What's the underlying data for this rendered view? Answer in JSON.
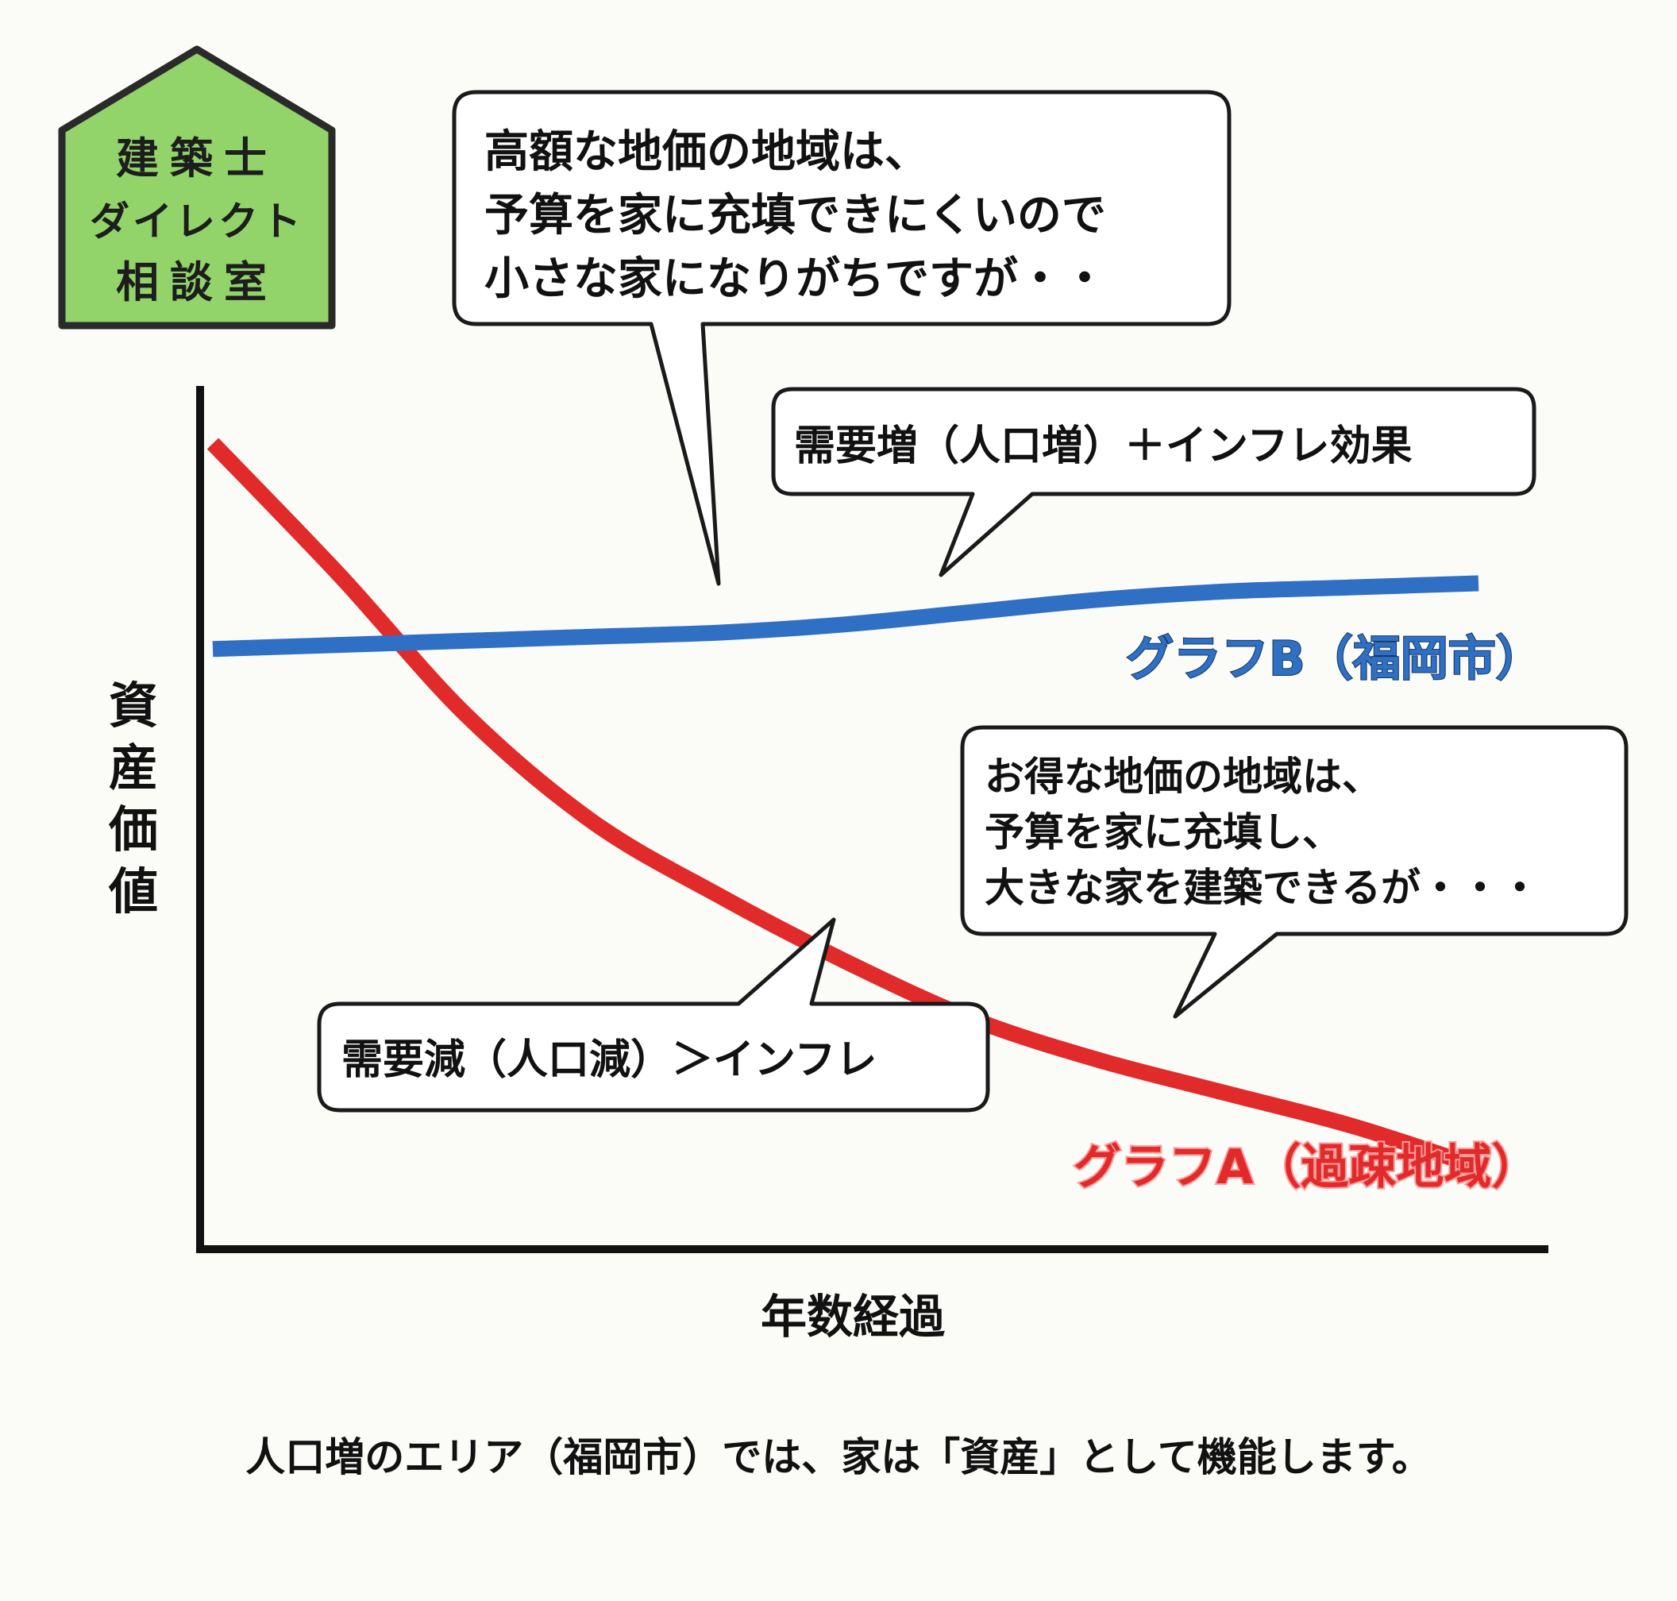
{
  "logo": {
    "lines": [
      "建築士",
      "ダイレクト",
      "相談室"
    ],
    "fill_color": "#92d36a"
  },
  "callouts": {
    "high_land": [
      "高額な地価の地域は、",
      "予算を家に充填できにくいので",
      "小さな家になりがちですが・・"
    ],
    "demand_up": "需要増（人口増）＋インフレ効果",
    "cheap_land": [
      "お得な地価の地域は、",
      "予算を家に充填し、",
      "大きな家を建築できるが・・・"
    ],
    "demand_down": "需要減（人口減）＞インフレ"
  },
  "chart_data": {
    "type": "line",
    "title": "",
    "xlabel": "年数経過",
    "ylabel": "資産価値",
    "x_ticks": "none",
    "y_ticks": "none",
    "grid": false,
    "x": [
      0,
      0.1,
      0.2,
      0.3,
      0.4,
      0.5,
      0.6,
      0.7,
      0.8,
      0.9,
      1.0
    ],
    "series": [
      {
        "name": "グラフB（福岡市）",
        "color": "#2f6fc4",
        "values": [
          0.73,
          0.735,
          0.74,
          0.745,
          0.75,
          0.76,
          0.775,
          0.79,
          0.8,
          0.805,
          0.81
        ]
      },
      {
        "name": "グラフA（過疎地域）",
        "color": "#e12a2a",
        "values": [
          0.98,
          0.82,
          0.65,
          0.52,
          0.43,
          0.35,
          0.28,
          0.23,
          0.19,
          0.15,
          0.1
        ]
      }
    ]
  },
  "caption": "人口増のエリア（福岡市）では、家は「資産」として機能します。"
}
